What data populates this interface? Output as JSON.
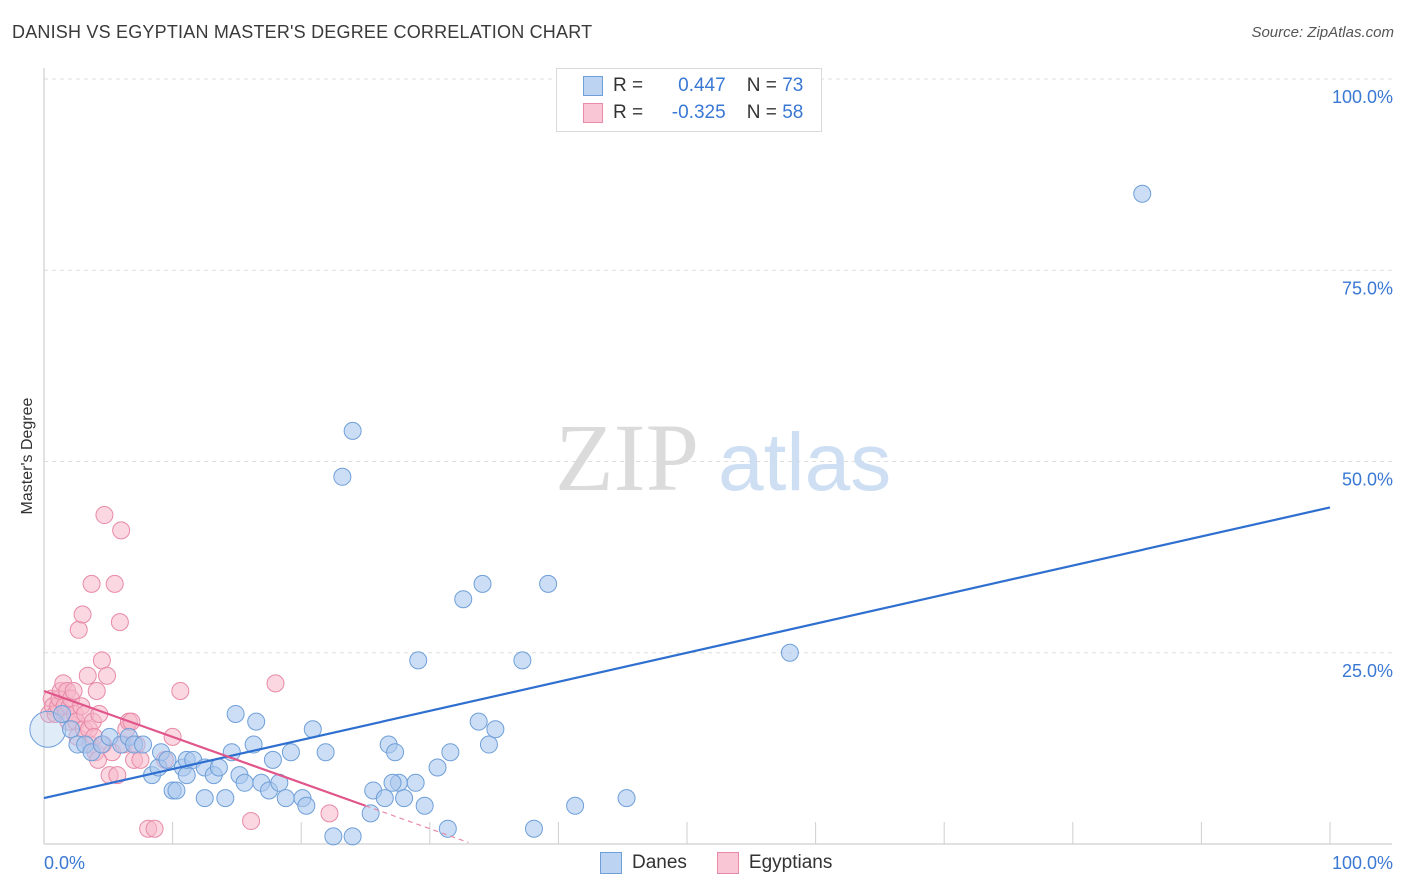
{
  "title": "DANISH VS EGYPTIAN MASTER'S DEGREE CORRELATION CHART",
  "source": "Source: ZipAtlas.com",
  "watermark": {
    "zip": "ZIP",
    "atlas": "atlas"
  },
  "legend": {
    "rows": [
      {
        "r_label": "R =",
        "r_value": "0.447",
        "n_label": "N =",
        "n_value": "73"
      },
      {
        "r_label": "R =",
        "r_value": "-0.325",
        "n_label": "N =",
        "n_value": "58"
      }
    ]
  },
  "bottom_legend": {
    "danes": "Danes",
    "egyptians": "Egyptians"
  },
  "colors": {
    "danes_fill": "#aac8ee",
    "danes_stroke": "#6f9fd8",
    "danes_line": "#2f6fd0",
    "egypt_fill": "#f5b6c8",
    "egypt_stroke": "#e88aa8",
    "egypt_line": "#e0558a",
    "axis_tick": "#3a78d4"
  },
  "chart_data": {
    "type": "scatter",
    "title": "DANISH VS EGYPTIAN MASTER'S DEGREE CORRELATION CHART",
    "xlabel": "",
    "ylabel": "Master's Degree",
    "xlim": [
      0,
      100
    ],
    "ylim": [
      0,
      100
    ],
    "x_tick_labels": [
      "0.0%",
      "100.0%"
    ],
    "y_ticks": [
      25,
      50,
      75,
      100
    ],
    "y_tick_labels": [
      "25.0%",
      "50.0%",
      "75.0%",
      "100.0%"
    ],
    "grid": true,
    "series": [
      {
        "name": "Danes",
        "points": [
          [
            0.3,
            15
          ],
          [
            1.4,
            17
          ],
          [
            2.1,
            15
          ],
          [
            2.6,
            13
          ],
          [
            3.2,
            13
          ],
          [
            3.7,
            12
          ],
          [
            4.5,
            13
          ],
          [
            5.1,
            14
          ],
          [
            6.0,
            13
          ],
          [
            6.6,
            14
          ],
          [
            7.0,
            13
          ],
          [
            7.7,
            13
          ],
          [
            8.4,
            9
          ],
          [
            8.9,
            10
          ],
          [
            9.1,
            12
          ],
          [
            9.6,
            11
          ],
          [
            10.0,
            7
          ],
          [
            10.3,
            7
          ],
          [
            10.8,
            10
          ],
          [
            11.1,
            9
          ],
          [
            11.1,
            11
          ],
          [
            11.6,
            11
          ],
          [
            12.5,
            10
          ],
          [
            12.5,
            6
          ],
          [
            13.2,
            9
          ],
          [
            13.6,
            10
          ],
          [
            14.1,
            6
          ],
          [
            14.6,
            12
          ],
          [
            14.9,
            17
          ],
          [
            15.2,
            9
          ],
          [
            15.6,
            8
          ],
          [
            16.5,
            16
          ],
          [
            16.9,
            8
          ],
          [
            17.5,
            7
          ],
          [
            17.8,
            11
          ],
          [
            18.3,
            8
          ],
          [
            18.8,
            6
          ],
          [
            19.2,
            12
          ],
          [
            20.1,
            6
          ],
          [
            20.4,
            5
          ],
          [
            20.9,
            15
          ],
          [
            21.9,
            12
          ],
          [
            22.5,
            1
          ],
          [
            23.2,
            48
          ],
          [
            24.0,
            1
          ],
          [
            24.0,
            54
          ],
          [
            25.4,
            4
          ],
          [
            25.6,
            7
          ],
          [
            26.5,
            6
          ],
          [
            26.8,
            13
          ],
          [
            27.3,
            12
          ],
          [
            27.6,
            8
          ],
          [
            28.0,
            6
          ],
          [
            28.9,
            8
          ],
          [
            29.6,
            5
          ],
          [
            30.6,
            10
          ],
          [
            31.4,
            2
          ],
          [
            31.6,
            12
          ],
          [
            32.6,
            32
          ],
          [
            33.8,
            16
          ],
          [
            34.1,
            34
          ],
          [
            34.6,
            13
          ],
          [
            35.1,
            15
          ],
          [
            37.2,
            24
          ],
          [
            38.1,
            2
          ],
          [
            39.2,
            34
          ],
          [
            41.3,
            5
          ],
          [
            45.3,
            6
          ],
          [
            58.0,
            25
          ],
          [
            85.4,
            85
          ],
          [
            29.1,
            24
          ],
          [
            16.3,
            13
          ],
          [
            27.1,
            8
          ]
        ]
      },
      {
        "name": "Egyptians",
        "points": [
          [
            0.4,
            17
          ],
          [
            0.6,
            19
          ],
          [
            0.7,
            18
          ],
          [
            0.9,
            17
          ],
          [
            1.1,
            18
          ],
          [
            1.2,
            19
          ],
          [
            1.3,
            20
          ],
          [
            1.5,
            21
          ],
          [
            1.6,
            18
          ],
          [
            1.7,
            17
          ],
          [
            1.8,
            20
          ],
          [
            1.9,
            16
          ],
          [
            2.0,
            18
          ],
          [
            2.1,
            19
          ],
          [
            2.3,
            20
          ],
          [
            2.4,
            17
          ],
          [
            2.5,
            16
          ],
          [
            2.6,
            14
          ],
          [
            2.7,
            28
          ],
          [
            2.9,
            18
          ],
          [
            3.0,
            30
          ],
          [
            3.1,
            15
          ],
          [
            3.2,
            17
          ],
          [
            3.4,
            22
          ],
          [
            3.5,
            15
          ],
          [
            3.6,
            13
          ],
          [
            3.7,
            34
          ],
          [
            3.8,
            16
          ],
          [
            3.9,
            14
          ],
          [
            4.0,
            12
          ],
          [
            4.1,
            20
          ],
          [
            4.2,
            11
          ],
          [
            4.3,
            17
          ],
          [
            4.5,
            24
          ],
          [
            4.6,
            13
          ],
          [
            4.7,
            43
          ],
          [
            4.9,
            22
          ],
          [
            5.1,
            9
          ],
          [
            5.3,
            12
          ],
          [
            5.5,
            34
          ],
          [
            5.7,
            9
          ],
          [
            5.9,
            29
          ],
          [
            6.0,
            41
          ],
          [
            6.2,
            13
          ],
          [
            6.4,
            15
          ],
          [
            6.6,
            16
          ],
          [
            6.8,
            16
          ],
          [
            7.0,
            11
          ],
          [
            7.2,
            13
          ],
          [
            7.5,
            11
          ],
          [
            8.1,
            2
          ],
          [
            8.6,
            2
          ],
          [
            9.4,
            11
          ],
          [
            10.0,
            14
          ],
          [
            10.6,
            20
          ],
          [
            16.1,
            3
          ],
          [
            18.0,
            21
          ],
          [
            22.2,
            4
          ]
        ]
      }
    ],
    "trendlines": [
      {
        "series": "Danes",
        "x": [
          0,
          100
        ],
        "y": [
          6,
          44
        ]
      },
      {
        "series": "Egyptians",
        "x": [
          0,
          25
        ],
        "y": [
          20,
          5
        ],
        "dashed_extension_x": [
          25,
          33
        ]
      }
    ]
  }
}
